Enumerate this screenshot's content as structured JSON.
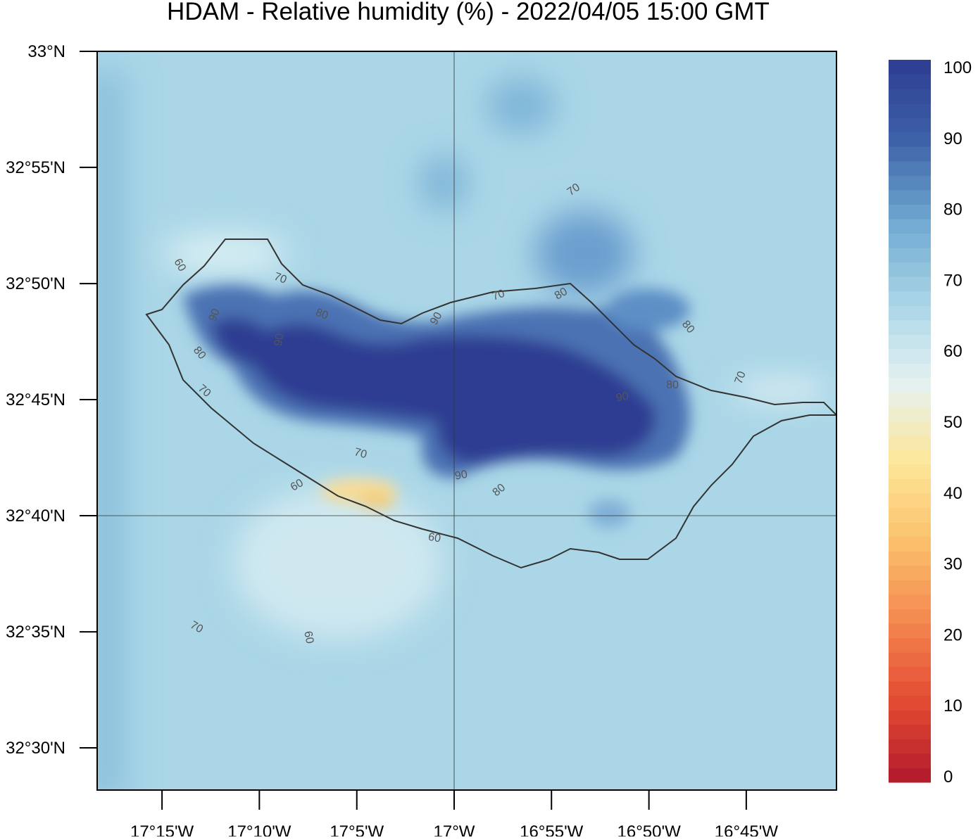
{
  "chart_data": {
    "type": "map",
    "title": "HDAM - Relative humidity (%)  -  2022/04/05  15:00 GMT",
    "xlim": [
      -17.3055,
      -16.6728
    ],
    "ylim": [
      32.4697,
      33.0
    ],
    "xticks": [
      {
        "value": -17.25,
        "label": "17°15'W"
      },
      {
        "value": -17.1667,
        "label": "17°10'W"
      },
      {
        "value": -17.0833,
        "label": "17°5'W"
      },
      {
        "value": -17.0,
        "label": "17°W"
      },
      {
        "value": -16.9167,
        "label": "16°55'W"
      },
      {
        "value": -16.8333,
        "label": "16°50'W"
      },
      {
        "value": -16.75,
        "label": "16°45'W"
      }
    ],
    "yticks": [
      {
        "value": 33.0,
        "label": "33°N"
      },
      {
        "value": 32.9167,
        "label": "32°55'N"
      },
      {
        "value": 32.8333,
        "label": "32°50'N"
      },
      {
        "value": 32.75,
        "label": "32°45'N"
      },
      {
        "value": 32.6667,
        "label": "32°40'N"
      },
      {
        "value": 32.5833,
        "label": "32°35'N"
      },
      {
        "value": 32.5,
        "label": "32°30'N"
      }
    ],
    "colorbar": {
      "lim": [
        0,
        100
      ],
      "ticks": [
        0,
        10,
        20,
        30,
        40,
        50,
        60,
        70,
        80,
        90,
        100
      ],
      "colors": [
        "#b2182b",
        "#e34a33",
        "#f4874f",
        "#fbc06b",
        "#fde79a",
        "#e4f1f2",
        "#a8d4e6",
        "#6fa8d0",
        "#3d62a8",
        "#2e3d92"
      ]
    },
    "contour_labels": [
      70,
      60,
      70,
      90,
      80,
      90,
      70,
      80,
      80,
      90,
      80,
      70,
      80,
      70,
      90,
      70,
      60,
      90,
      80,
      60,
      70,
      60
    ]
  }
}
